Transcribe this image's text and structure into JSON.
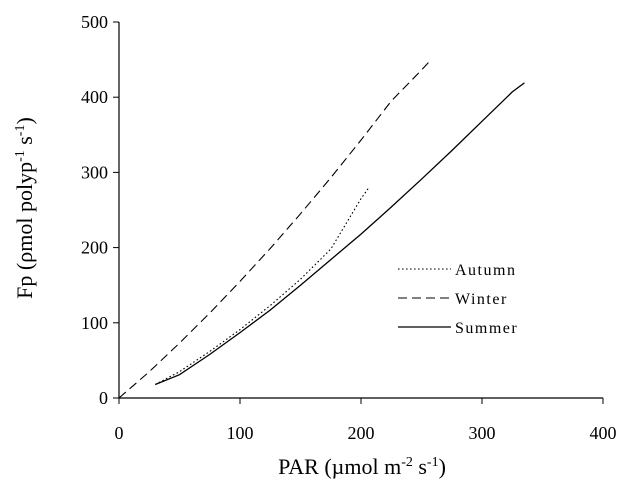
{
  "chart_data": {
    "type": "line",
    "xlabel": {
      "main": "PAR (µmol m",
      "sup1": "-2",
      "mid": " s",
      "sup2": "-1",
      "end": ")"
    },
    "ylabel": {
      "main": "Fp (ρmol polyp",
      "sup1": "-1",
      "mid": " s",
      "sup2": "-1",
      "end": ")"
    },
    "xlim": [
      0,
      400
    ],
    "ylim": [
      0,
      500
    ],
    "xticks": [
      0,
      100,
      200,
      300,
      400
    ],
    "yticks": [
      0,
      100,
      200,
      300,
      400,
      500
    ],
    "grid": false,
    "legend_position": "right-center",
    "series": [
      {
        "name": "Autumn",
        "style": "dotted",
        "color": "#000000",
        "x": [
          30,
          50,
          75,
          100,
          125,
          150,
          175,
          200,
          207
        ],
        "y": [
          18,
          35,
          62,
          91,
          123,
          158,
          198,
          265,
          281
        ]
      },
      {
        "name": "Winter",
        "style": "dashed",
        "color": "#000000",
        "x": [
          0,
          25,
          50,
          75,
          100,
          125,
          150,
          175,
          200,
          225,
          250,
          258
        ],
        "y": [
          0,
          35,
          73,
          113,
          155,
          199,
          245,
          293,
          343,
          395,
          436,
          450
        ]
      },
      {
        "name": "Summer",
        "style": "solid",
        "color": "#000000",
        "x": [
          30,
          50,
          75,
          100,
          125,
          150,
          175,
          200,
          225,
          250,
          275,
          300,
          325,
          335
        ],
        "y": [
          18,
          31,
          58,
          87,
          117,
          150,
          184,
          218,
          254,
          291,
          329,
          368,
          407,
          419
        ]
      }
    ]
  }
}
